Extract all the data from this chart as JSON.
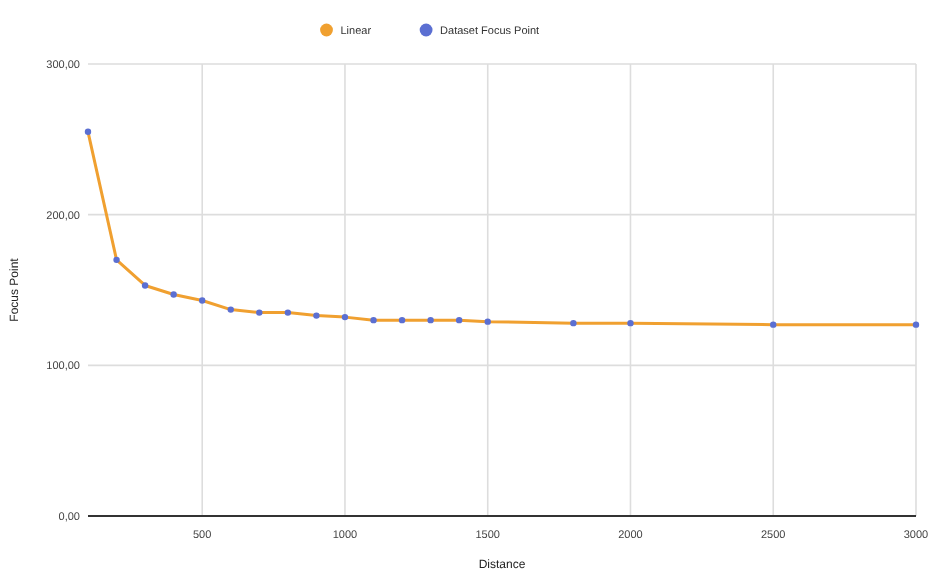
{
  "chart_data": {
    "type": "line",
    "xlabel": "Distance",
    "ylabel": "Focus Point",
    "x": [
      100,
      200,
      300,
      400,
      500,
      600,
      700,
      800,
      900,
      1000,
      1100,
      1200,
      1300,
      1400,
      1500,
      1800,
      2000,
      2500,
      3000
    ],
    "series": [
      {
        "name": "Linear",
        "color": "#f0a030",
        "marker": "none",
        "values": [
          255,
          170,
          153,
          147,
          143,
          137,
          135,
          135,
          133,
          132,
          130,
          130,
          130,
          130,
          129,
          128,
          128,
          127,
          127
        ]
      },
      {
        "name": "Dataset Focus Point",
        "type": "scatter",
        "color": "#5b6fd2",
        "marker": "circle",
        "values": [
          255,
          170,
          153,
          147,
          143,
          137,
          135,
          135,
          133,
          132,
          130,
          130,
          130,
          130,
          129,
          128,
          128,
          127,
          127
        ]
      }
    ],
    "xlim": [
      100,
      3000
    ],
    "xticks": [
      500,
      1000,
      1500,
      2000,
      2500,
      3000
    ],
    "ylim": [
      0,
      300
    ],
    "yticks": [
      {
        "value": 0,
        "label": "0,00"
      },
      {
        "value": 100,
        "label": "100,00"
      },
      {
        "value": 200,
        "label": "200,00"
      },
      {
        "value": 300,
        "label": "300,00"
      }
    ],
    "grid": true,
    "legend": "top"
  }
}
